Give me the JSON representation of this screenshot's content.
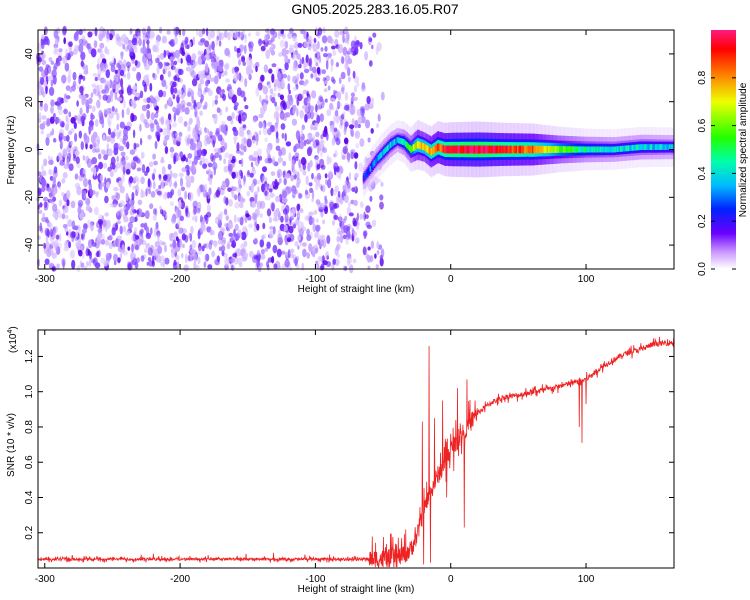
{
  "title": "GN05.2025.283.16.05.R07",
  "chart_data": [
    {
      "type": "heatmap",
      "name": "spectrogram",
      "xlabel": "Height of straight line (km)",
      "ylabel": "Frequency (Hz)",
      "xlim": [
        -305,
        165
      ],
      "ylim": [
        -50,
        50
      ],
      "xticks": [
        -300,
        -200,
        -100,
        0,
        100
      ],
      "xtick_labels": [
        "-300",
        "-200",
        "-100",
        "0",
        "100"
      ],
      "yticks": [
        -40,
        -20,
        0,
        20,
        40
      ],
      "ytick_labels": [
        "-40",
        "-20",
        "0",
        "20",
        "40"
      ],
      "noise_region_x": [
        -305,
        -50
      ],
      "ridge": {
        "x": [
          -65,
          -60,
          -55,
          -50,
          -45,
          -40,
          -35,
          -30,
          -25,
          -20,
          -15,
          -10,
          -5,
          0,
          20,
          40,
          60,
          80,
          100,
          120,
          140,
          165
        ],
        "y": [
          -12,
          -8,
          -4,
          -1,
          2,
          4,
          3,
          0,
          2,
          1,
          -1,
          1,
          0,
          0,
          0,
          0,
          0,
          0,
          0,
          0,
          1,
          1
        ],
        "amplitude": [
          0.25,
          0.3,
          0.35,
          0.4,
          0.4,
          0.35,
          0.45,
          0.55,
          0.75,
          0.7,
          0.8,
          0.85,
          0.9,
          0.95,
          1.0,
          0.9,
          0.85,
          0.6,
          0.45,
          0.4,
          0.4,
          0.35
        ]
      },
      "colorbar": {
        "label": "Normalized spectral amplitude",
        "range": [
          0,
          1
        ],
        "ticks": [
          0.0,
          0.2,
          0.4,
          0.6,
          0.8
        ],
        "tick_labels": [
          "0.0",
          "0.2",
          "0.4",
          "0.6",
          "0.8"
        ]
      }
    },
    {
      "type": "line",
      "name": "snr",
      "xlabel": "Height of straight line (km)",
      "ylabel": "SNR (10 * v/v)",
      "scale_label": "(x10",
      "scale_exponent": "4",
      "scale_close": ")",
      "xlim": [
        -305,
        165
      ],
      "ylim": [
        0,
        13500
      ],
      "xticks": [
        -300,
        -200,
        -100,
        0,
        100
      ],
      "xtick_labels": [
        "-300",
        "-200",
        "-100",
        "0",
        "100"
      ],
      "yticks": [
        2000,
        4000,
        6000,
        8000,
        10000,
        12000
      ],
      "ytick_labels": [
        "0.2",
        "0.4",
        "0.6",
        "0.8",
        "1.0",
        "1.2"
      ],
      "color": "#ee2222",
      "trend": {
        "x": [
          -305,
          -60,
          -40,
          -30,
          -25,
          -20,
          -15,
          -10,
          -5,
          0,
          5,
          10,
          20,
          30,
          40,
          50,
          60,
          70,
          80,
          90,
          100,
          110,
          120,
          130,
          140,
          150,
          165
        ],
        "y": [
          500,
          500,
          550,
          1000,
          1800,
          3200,
          4300,
          5200,
          5800,
          6700,
          7200,
          7800,
          8800,
          9400,
          9700,
          9800,
          10000,
          10100,
          10300,
          10500,
          10700,
          11300,
          11800,
          12200,
          12400,
          12700,
          12800
        ]
      },
      "spikes": [
        {
          "x": -21,
          "y": 8300
        },
        {
          "x": -16,
          "y": 12600
        },
        {
          "x": -12,
          "y": 8500
        },
        {
          "x": -6,
          "y": 9500
        },
        {
          "x": 5,
          "y": 10200
        },
        {
          "x": 12,
          "y": 10700
        },
        {
          "x": 18,
          "y": 9500
        },
        {
          "x": 95,
          "y": 8000
        },
        {
          "x": 100,
          "y": 9300
        }
      ],
      "dips": [
        {
          "x": -20,
          "y": 200
        },
        {
          "x": -15,
          "y": 300
        },
        {
          "x": -3,
          "y": 4000
        },
        {
          "x": 10,
          "y": 2300
        },
        {
          "x": 97,
          "y": 7100
        }
      ]
    }
  ]
}
